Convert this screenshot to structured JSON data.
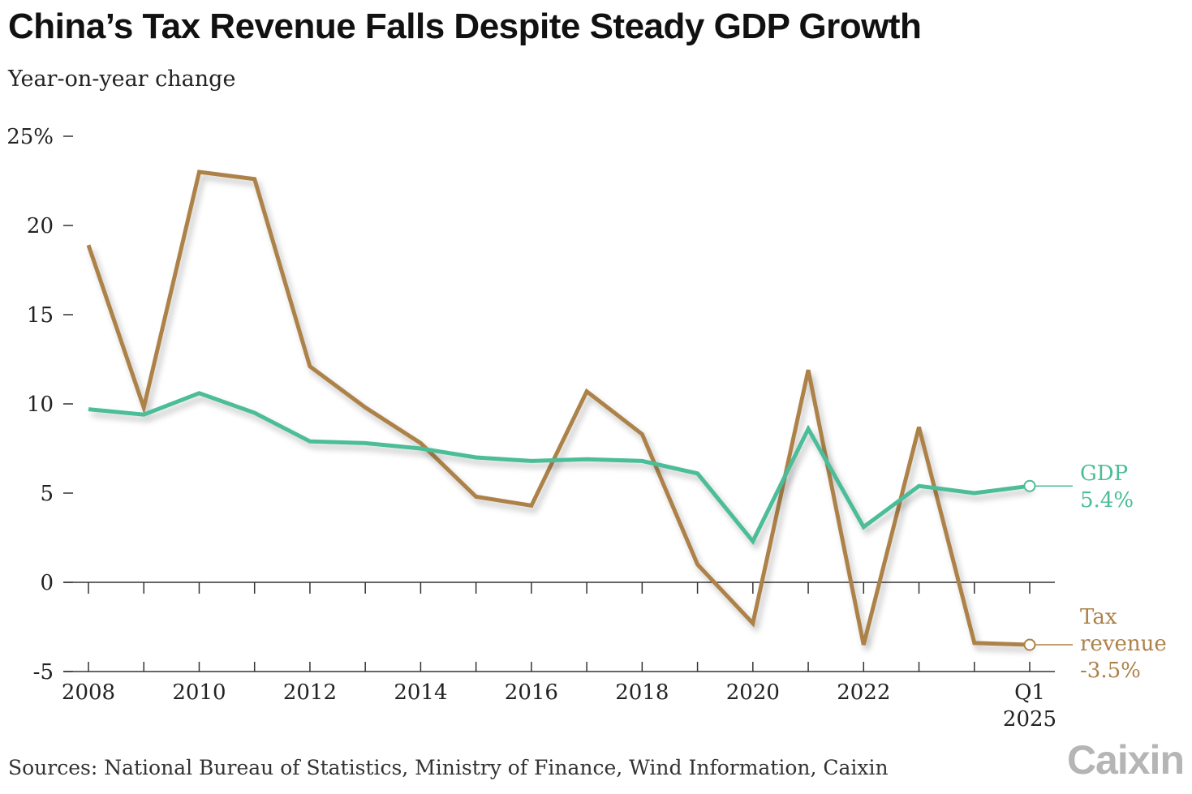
{
  "header": {
    "title": "China’s Tax Revenue Falls Despite Steady GDP Growth",
    "subtitle": "Year-on-year change"
  },
  "footer": {
    "source": "Sources: National Bureau of Statistics, Ministry of Finance, Wind Information, Caixin",
    "logo": "Caixin"
  },
  "colors": {
    "gdp": "#4bbd98",
    "tax": "#ad8249",
    "axis": "#333333"
  },
  "chart_data": {
    "type": "line",
    "title": "China’s Tax Revenue Falls Despite Steady GDP Growth",
    "subtitle": "Year-on-year change",
    "ylim": [
      -5,
      25
    ],
    "y_ticks": [
      {
        "value": 25,
        "label": "25%"
      },
      {
        "value": 20,
        "label": "20"
      },
      {
        "value": 15,
        "label": "15"
      },
      {
        "value": 10,
        "label": "10"
      },
      {
        "value": 5,
        "label": "5"
      },
      {
        "value": 0,
        "label": "0"
      },
      {
        "value": -5,
        "label": "-5"
      }
    ],
    "x": [
      "2008",
      "2009",
      "2010",
      "2011",
      "2012",
      "2013",
      "2014",
      "2015",
      "2016",
      "2017",
      "2018",
      "2019",
      "2020",
      "2021",
      "2022",
      "2023",
      "2024",
      "Q1 2025"
    ],
    "x_tick_labels": [
      {
        "index": 0,
        "lines": [
          "2008"
        ]
      },
      {
        "index": 2,
        "lines": [
          "2010"
        ]
      },
      {
        "index": 4,
        "lines": [
          "2012"
        ]
      },
      {
        "index": 6,
        "lines": [
          "2014"
        ]
      },
      {
        "index": 8,
        "lines": [
          "2016"
        ]
      },
      {
        "index": 10,
        "lines": [
          "2018"
        ]
      },
      {
        "index": 12,
        "lines": [
          "2020"
        ]
      },
      {
        "index": 14,
        "lines": [
          "2022"
        ]
      },
      {
        "index": 17,
        "lines": [
          "Q1",
          "2025"
        ]
      }
    ],
    "series": [
      {
        "name": "GDP",
        "key": "gdp",
        "values": [
          9.7,
          9.4,
          10.6,
          9.5,
          7.9,
          7.8,
          7.5,
          7.0,
          6.8,
          6.9,
          6.8,
          6.1,
          2.3,
          8.6,
          3.1,
          5.4,
          5.0,
          5.4
        ],
        "end_label": [
          "GDP",
          "5.4%"
        ]
      },
      {
        "name": "Tax revenue",
        "key": "tax",
        "values": [
          18.9,
          9.8,
          23.0,
          22.6,
          12.1,
          9.8,
          7.8,
          4.8,
          4.3,
          10.7,
          8.3,
          1.0,
          -2.3,
          11.9,
          -3.5,
          8.7,
          -3.4,
          -3.5
        ],
        "end_label": [
          "Tax",
          "revenue",
          "-3.5%"
        ]
      }
    ]
  }
}
